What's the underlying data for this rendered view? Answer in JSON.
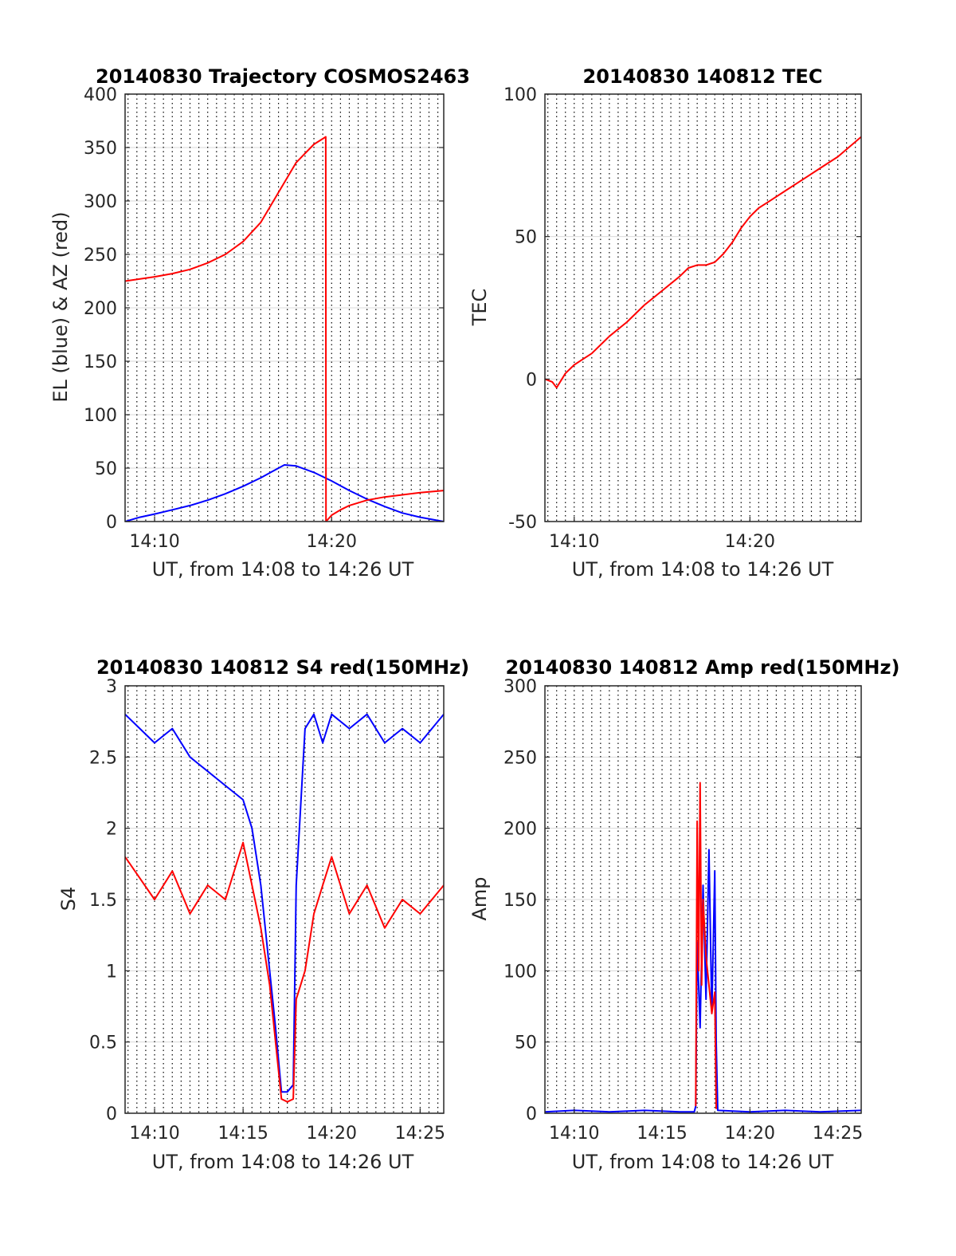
{
  "figure": {
    "background": "#ffffff"
  },
  "colors": {
    "red": "#ff0000",
    "blue": "#0000ff",
    "grid": "#d9d9d9",
    "axis": "#262626"
  },
  "chart_data": [
    {
      "type": "line",
      "title": "20140830 Trajectory COSMOS2463",
      "xlabel": "UT, from 14:08 to 14:26 UT",
      "ylabel": "EL (blue) & AZ (red)",
      "xlim": [
        "14:08:20",
        "14:26:20"
      ],
      "ylim": [
        0,
        400
      ],
      "yticks": [
        0,
        50,
        100,
        150,
        200,
        250,
        300,
        350,
        400
      ],
      "xticks": [
        {
          "t": "14:10:00",
          "label": "14:10"
        },
        {
          "t": "14:20:00",
          "label": "14:20"
        }
      ],
      "grid": "x dotted every 30 s, y solid",
      "series": [
        {
          "color": "#0000ff",
          "x": [
            "14:08:20",
            "14:09:10",
            "14:10:00",
            "14:11:00",
            "14:12:00",
            "14:13:00",
            "14:14:00",
            "14:15:00",
            "14:16:00",
            "14:16:40",
            "14:17:20",
            "14:18:00",
            "14:19:00",
            "14:20:00",
            "14:21:00",
            "14:22:00",
            "14:23:00",
            "14:24:00",
            "14:25:00",
            "14:26:20"
          ],
          "y": [
            0,
            4,
            7,
            11,
            15,
            20,
            26,
            33,
            41,
            47,
            53,
            52,
            46,
            38,
            29,
            21,
            14,
            8,
            4,
            0
          ]
        },
        {
          "color": "#ff0000",
          "x": [
            "14:08:20",
            "14:10:00",
            "14:11:00",
            "14:12:00",
            "14:13:00",
            "14:14:00",
            "14:15:00",
            "14:16:00",
            "14:17:00",
            "14:18:00",
            "14:19:00",
            "14:19:40",
            "14:19:41",
            "14:20:00",
            "14:20:30",
            "14:21:00",
            "14:22:00",
            "14:23:00",
            "14:24:00",
            "14:25:00",
            "14:26:20"
          ],
          "y": [
            225,
            229,
            232,
            236,
            242,
            250,
            262,
            280,
            308,
            336,
            353,
            360,
            0,
            6,
            11,
            15,
            20,
            23,
            25,
            27,
            29
          ]
        }
      ]
    },
    {
      "type": "line",
      "title": "20140830 140812 TEC",
      "xlabel": "UT, from 14:08 to 14:26 UT",
      "ylabel": "TEC",
      "xlim": [
        "14:08:20",
        "14:26:20"
      ],
      "ylim": [
        -50,
        100
      ],
      "yticks": [
        -50,
        0,
        50,
        100
      ],
      "xticks": [
        {
          "t": "14:10:00",
          "label": "14:10"
        },
        {
          "t": "14:20:00",
          "label": "14:20"
        }
      ],
      "grid": "x dotted every 30 s, y solid",
      "series": [
        {
          "color": "#ff0000",
          "x": [
            "14:08:20",
            "14:08:45",
            "14:09:00",
            "14:09:30",
            "14:10:00",
            "14:10:30",
            "14:11:00",
            "14:12:00",
            "14:13:00",
            "14:14:00",
            "14:15:00",
            "14:16:00",
            "14:16:30",
            "14:17:00",
            "14:17:30",
            "14:18:00",
            "14:18:30",
            "14:19:00",
            "14:19:30",
            "14:20:00",
            "14:20:30",
            "14:21:00",
            "14:22:00",
            "14:23:00",
            "14:24:00",
            "14:25:00",
            "14:26:20"
          ],
          "y": [
            0,
            -1,
            -3,
            2,
            5,
            7,
            9,
            15,
            20,
            26,
            31,
            36,
            39,
            40,
            40,
            41,
            44,
            48,
            53,
            57,
            60,
            62,
            66,
            70,
            74,
            78,
            85
          ]
        }
      ]
    },
    {
      "type": "line",
      "title": "20140830 140812 S4 red(150MHz)",
      "xlabel": "UT, from 14:08 to 14:26 UT",
      "ylabel": "S4",
      "xlim": [
        "14:08:20",
        "14:26:20"
      ],
      "ylim": [
        0,
        3
      ],
      "yticks": [
        0,
        0.5,
        1,
        1.5,
        2,
        2.5,
        3
      ],
      "xticks": [
        {
          "t": "14:10:00",
          "label": "14:10"
        },
        {
          "t": "14:15:00",
          "label": "14:15"
        },
        {
          "t": "14:20:00",
          "label": "14:20"
        },
        {
          "t": "14:25:00",
          "label": "14:25"
        }
      ],
      "grid": "x dotted every 30 s, y solid",
      "series": [
        {
          "color": "#0000ff",
          "x": [
            "14:08:20",
            "14:10:00",
            "14:11:00",
            "14:12:00",
            "14:13:00",
            "14:14:00",
            "14:15:00",
            "14:15:30",
            "14:16:00",
            "14:16:30",
            "14:16:50",
            "14:17:10",
            "14:17:30",
            "14:17:50",
            "14:18:00",
            "14:18:30",
            "14:19:00",
            "14:19:30",
            "14:20:00",
            "14:21:00",
            "14:22:00",
            "14:23:00",
            "14:24:00",
            "14:25:00",
            "14:26:20"
          ],
          "y": [
            2.8,
            2.6,
            2.7,
            2.5,
            2.4,
            2.3,
            2.2,
            2.0,
            1.6,
            1.0,
            0.6,
            0.15,
            0.15,
            0.2,
            1.6,
            2.7,
            2.8,
            2.6,
            2.8,
            2.7,
            2.8,
            2.6,
            2.7,
            2.6,
            2.8
          ]
        },
        {
          "color": "#ff0000",
          "x": [
            "14:08:20",
            "14:10:00",
            "14:11:00",
            "14:12:00",
            "14:13:00",
            "14:14:00",
            "14:15:00",
            "14:15:30",
            "14:16:00",
            "14:16:30",
            "14:16:50",
            "14:17:10",
            "14:17:30",
            "14:17:50",
            "14:18:00",
            "14:18:30",
            "14:19:00",
            "14:19:30",
            "14:20:00",
            "14:21:00",
            "14:22:00",
            "14:23:00",
            "14:24:00",
            "14:25:00",
            "14:26:20"
          ],
          "y": [
            1.8,
            1.5,
            1.7,
            1.4,
            1.6,
            1.5,
            1.9,
            1.6,
            1.3,
            0.9,
            0.5,
            0.1,
            0.08,
            0.1,
            0.8,
            1.0,
            1.4,
            1.6,
            1.8,
            1.4,
            1.6,
            1.3,
            1.5,
            1.4,
            1.6
          ]
        }
      ]
    },
    {
      "type": "line",
      "title": "20140830 140812 Amp red(150MHz)",
      "xlabel": "UT, from 14:08 to 14:26 UT",
      "ylabel": "Amp",
      "xlim": [
        "14:08:20",
        "14:26:20"
      ],
      "ylim": [
        0,
        300
      ],
      "yticks": [
        0,
        50,
        100,
        150,
        200,
        250,
        300
      ],
      "xticks": [
        {
          "t": "14:10:00",
          "label": "14:10"
        },
        {
          "t": "14:15:00",
          "label": "14:15"
        },
        {
          "t": "14:20:00",
          "label": "14:20"
        },
        {
          "t": "14:25:00",
          "label": "14:25"
        }
      ],
      "grid": "x dotted every 30 s, y solid",
      "series": [
        {
          "color": "#0000ff",
          "x": [
            "14:08:20",
            "14:10:00",
            "14:12:00",
            "14:14:00",
            "14:16:00",
            "14:16:50",
            "14:16:55",
            "14:17:00",
            "14:17:10",
            "14:17:20",
            "14:17:30",
            "14:17:40",
            "14:17:50",
            "14:18:00",
            "14:18:05",
            "14:18:10",
            "14:20:00",
            "14:22:00",
            "14:24:00",
            "14:26:20"
          ],
          "y": [
            1,
            2,
            1,
            2,
            1,
            1,
            5,
            120,
            60,
            160,
            80,
            185,
            70,
            170,
            50,
            2,
            1,
            2,
            1,
            2
          ]
        },
        {
          "color": "#ff0000",
          "x": [
            "14:16:55",
            "14:17:00",
            "14:17:05",
            "14:17:10",
            "14:17:15",
            "14:17:20",
            "14:17:30",
            "14:17:40",
            "14:17:50",
            "14:18:00",
            "14:18:05"
          ],
          "y": [
            5,
            205,
            100,
            232,
            90,
            150,
            110,
            90,
            70,
            85,
            3
          ]
        }
      ]
    }
  ]
}
